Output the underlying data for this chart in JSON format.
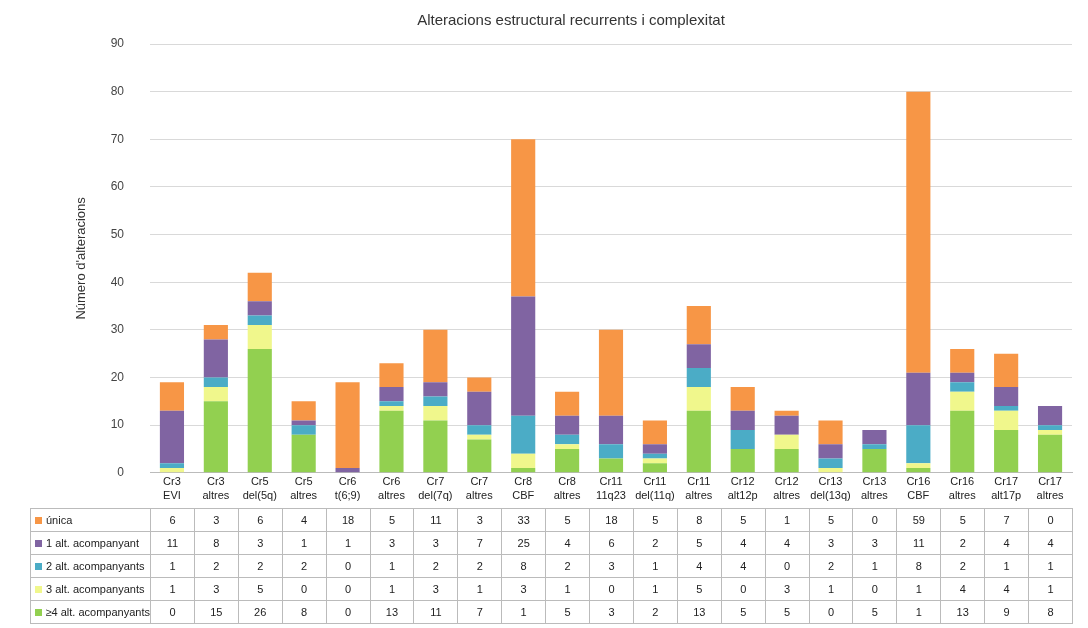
{
  "chart_data": {
    "type": "bar",
    "title": "Alteracions estructural recurrents i complexitat",
    "ylabel": "Número d'alteracions",
    "categories": [
      "Cr3 EVI",
      "Cr3 altres",
      "Cr5 del(5q)",
      "Cr5 altres",
      "Cr6 t(6;9)",
      "Cr6 altres",
      "Cr7 del(7q)",
      "Cr7 altres",
      "Cr8 CBF",
      "Cr8 altres",
      "Cr11 11q23",
      "Cr11 del(11q)",
      "Cr11 altres",
      "Cr12 alt12p",
      "Cr12 altres",
      "Cr13 del(13q)",
      "Cr13 altres",
      "Cr16 CBF",
      "Cr16 altres",
      "Cr17 alt17p",
      "Cr17 altres"
    ],
    "stacked": true,
    "ylim": [
      0,
      90
    ],
    "yticks": [
      0,
      10,
      20,
      30,
      40,
      50,
      60,
      70,
      80,
      90
    ],
    "grid": "y",
    "legend": "bottom",
    "data_labels": true,
    "series": [
      {
        "name": "≥4 alt. acompanyants",
        "color": "#92d050",
        "values": [
          0,
          15,
          26,
          8,
          0,
          13,
          11,
          7,
          1,
          5,
          3,
          2,
          13,
          5,
          5,
          0,
          5,
          1,
          13,
          9,
          8
        ]
      },
      {
        "name": "3 alt. acompanyants",
        "color": "#f0f78c",
        "values": [
          1,
          3,
          5,
          0,
          0,
          1,
          3,
          1,
          3,
          1,
          0,
          1,
          5,
          0,
          3,
          1,
          0,
          1,
          4,
          4,
          1
        ]
      },
      {
        "name": "2 alt. acompanyants",
        "color": "#4bacc6",
        "values": [
          1,
          2,
          2,
          2,
          0,
          1,
          2,
          2,
          8,
          2,
          3,
          1,
          4,
          4,
          0,
          2,
          1,
          8,
          2,
          1,
          1
        ]
      },
      {
        "name": "1 alt. acompanyant",
        "color": "#8064a2",
        "values": [
          11,
          8,
          3,
          1,
          1,
          3,
          3,
          7,
          25,
          4,
          6,
          2,
          5,
          4,
          4,
          3,
          3,
          11,
          2,
          4,
          4
        ]
      },
      {
        "name": "única",
        "color": "#f79646",
        "values": [
          6,
          3,
          6,
          4,
          18,
          5,
          11,
          3,
          33,
          5,
          18,
          5,
          8,
          5,
          1,
          5,
          0,
          59,
          5,
          7,
          0
        ]
      }
    ]
  }
}
